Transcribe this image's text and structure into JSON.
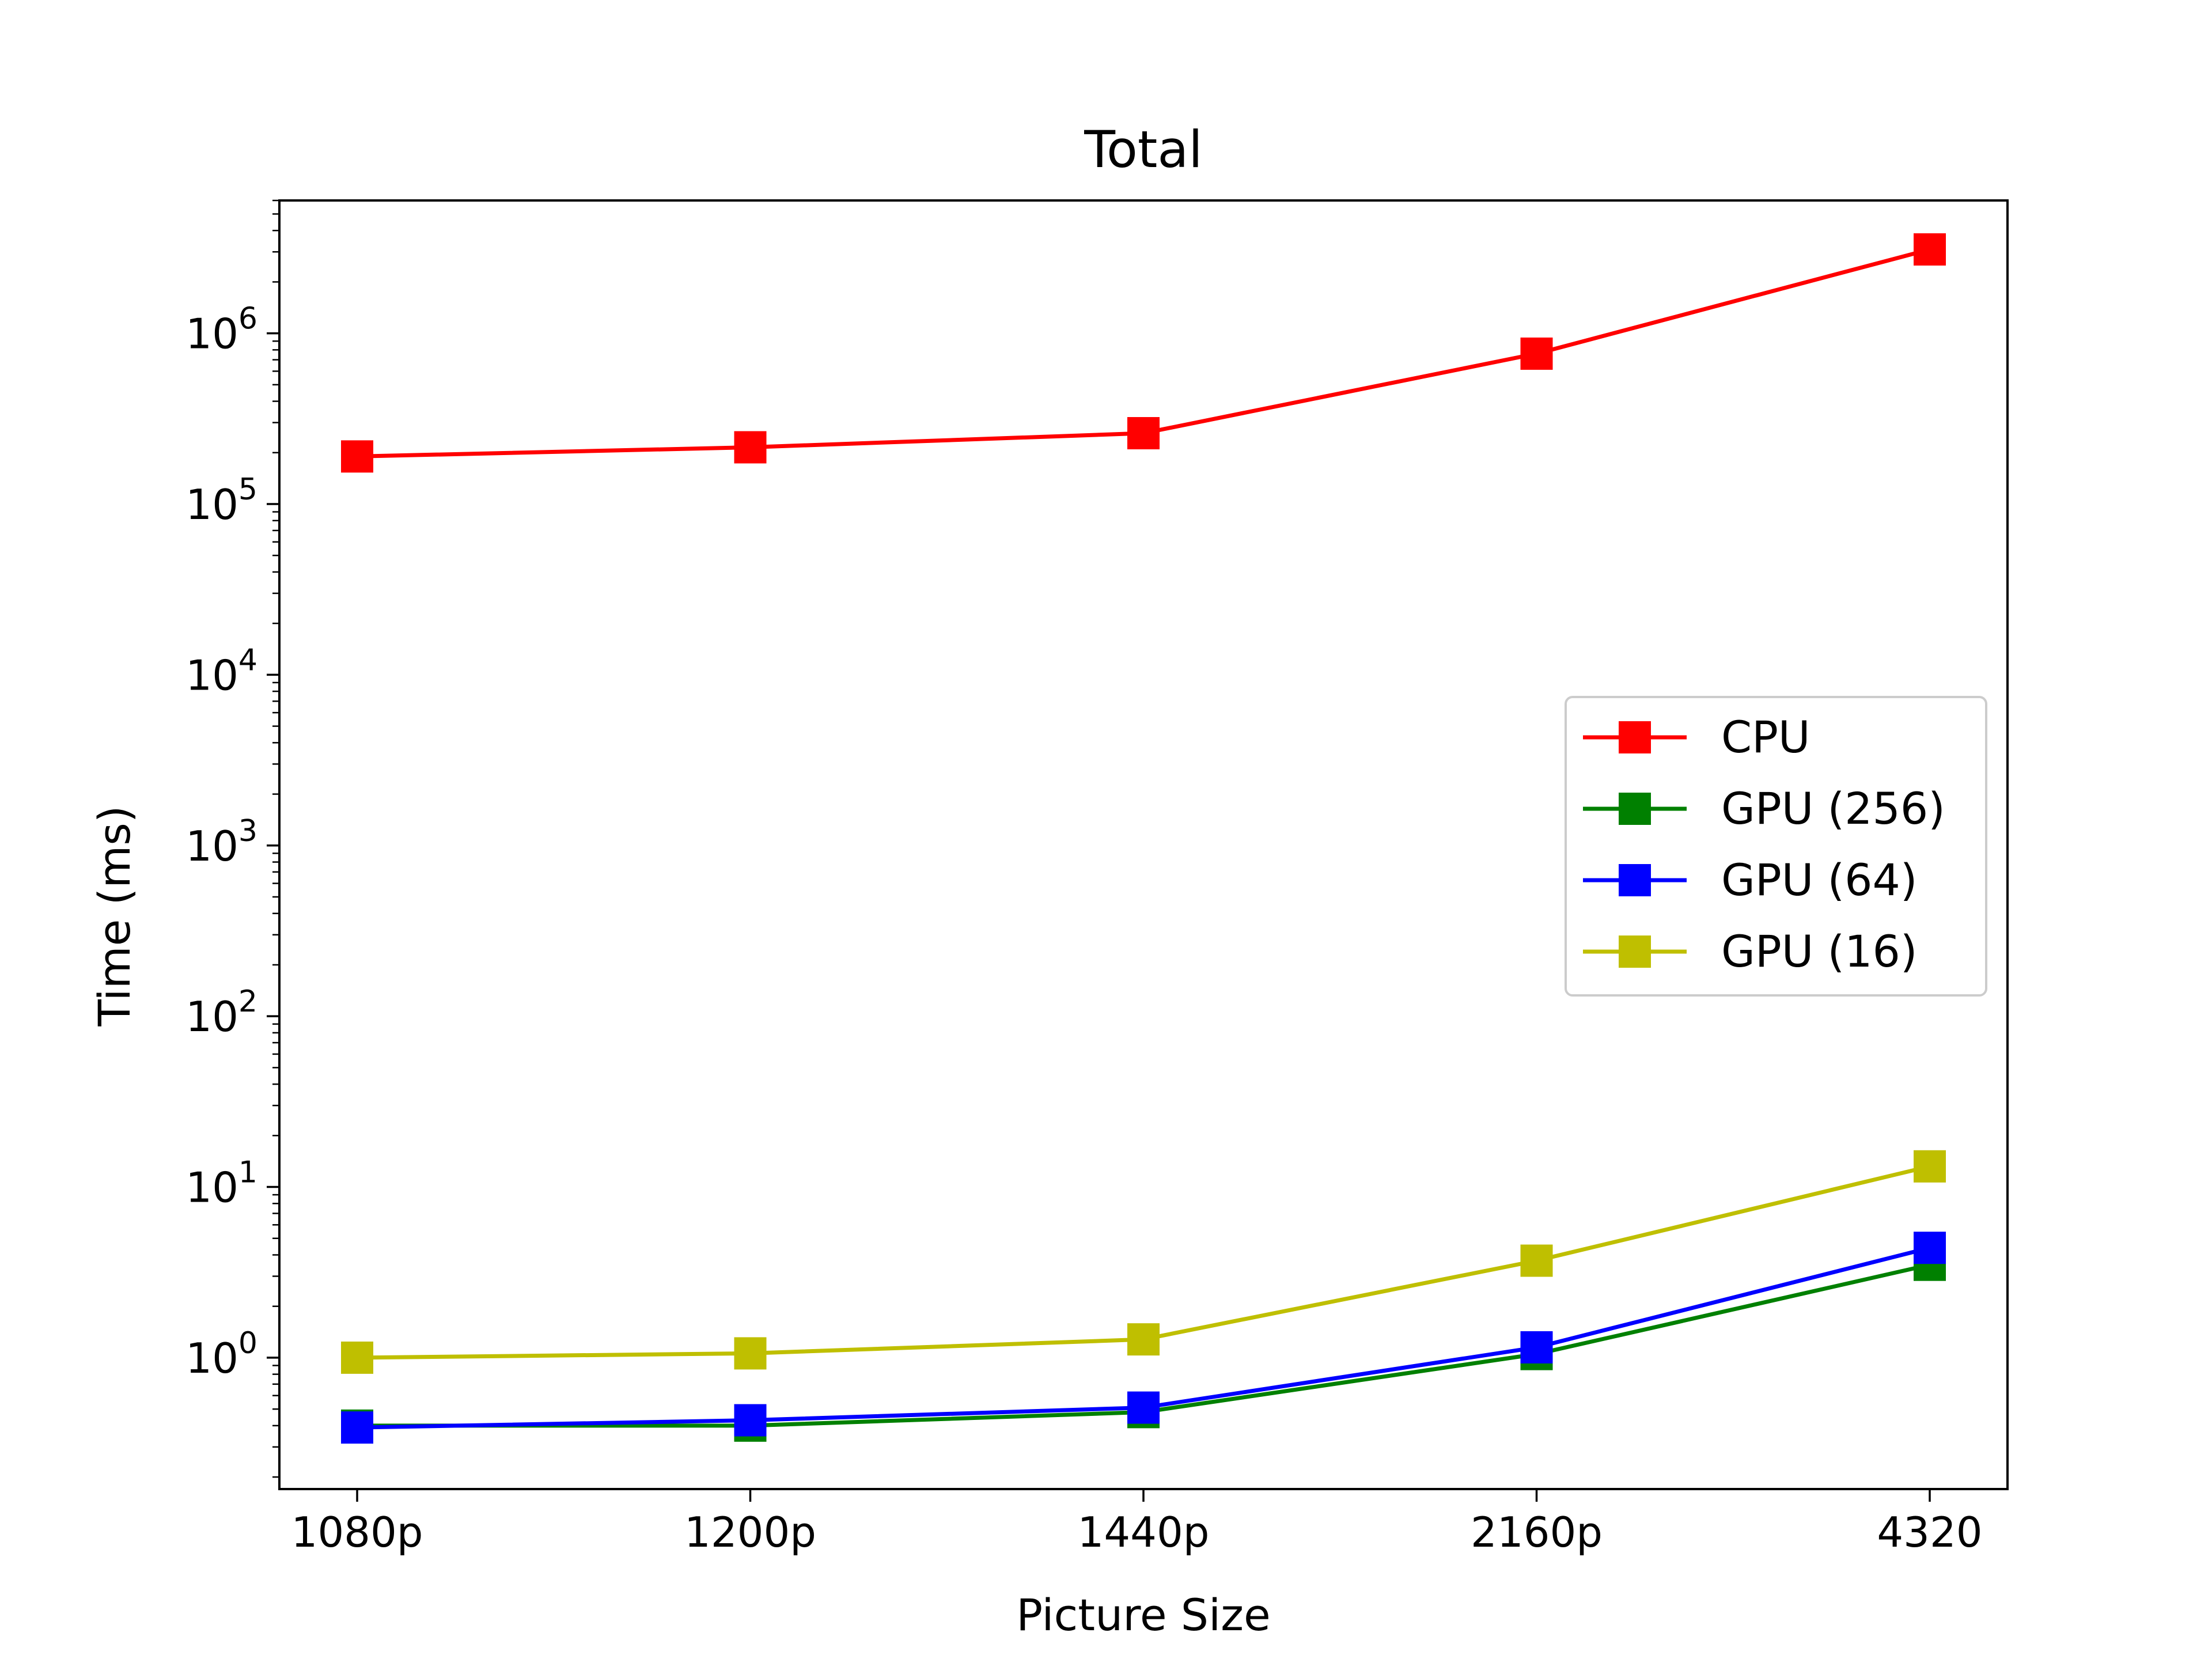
{
  "chart_data": {
    "type": "line",
    "title": "Total",
    "xlabel": "Picture Size",
    "ylabel": "Time (ms)",
    "y_scale": "log",
    "ylim": [
      0.17,
      6000000
    ],
    "categories": [
      "1080p",
      "1200p",
      "1440p",
      "2160p",
      "4320"
    ],
    "y_ticks": [
      {
        "value": 1,
        "base": "10",
        "exp": "0"
      },
      {
        "value": 10,
        "base": "10",
        "exp": "1"
      },
      {
        "value": 100,
        "base": "10",
        "exp": "2"
      },
      {
        "value": 1000,
        "base": "10",
        "exp": "3"
      },
      {
        "value": 10000,
        "base": "10",
        "exp": "4"
      },
      {
        "value": 100000,
        "base": "10",
        "exp": "5"
      },
      {
        "value": 1000000,
        "base": "10",
        "exp": "6"
      }
    ],
    "marker": "square",
    "grid": false,
    "legend_position": "center-right",
    "series": [
      {
        "name": "CPU",
        "color": "#ff0000",
        "values": [
          190000,
          215000,
          260000,
          760000,
          3100000
        ]
      },
      {
        "name": "GPU (256)",
        "color": "#008000",
        "values": [
          0.4,
          0.4,
          0.48,
          1.05,
          3.5
        ]
      },
      {
        "name": "GPU (64)",
        "color": "#0000ff",
        "values": [
          0.39,
          0.43,
          0.51,
          1.15,
          4.4
        ]
      },
      {
        "name": "GPU (16)",
        "color": "#bfbf00",
        "values": [
          1.0,
          1.06,
          1.28,
          3.7,
          13.2
        ]
      }
    ]
  }
}
